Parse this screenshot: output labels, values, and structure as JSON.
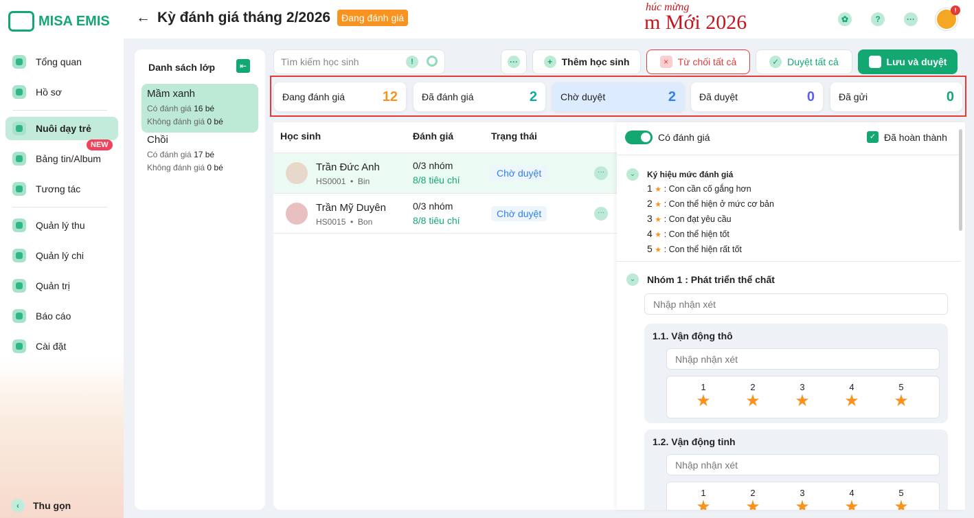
{
  "app": {
    "logo": "MISA EMIS"
  },
  "sidebar": {
    "items": [
      {
        "label": "Tổng quan"
      },
      {
        "label": "Hồ sơ"
      },
      {
        "label": "Nuôi dạy trẻ"
      },
      {
        "label": "Bảng tin/Album",
        "badge": "NEW"
      },
      {
        "label": "Tương tác"
      },
      {
        "label": "Quản lý thu"
      },
      {
        "label": "Quản lý chi"
      },
      {
        "label": "Quản trị"
      },
      {
        "label": "Báo cáo"
      },
      {
        "label": "Cài đặt"
      }
    ],
    "collapse": "Thu gọn",
    "active": "Nuôi dạy trẻ"
  },
  "header": {
    "title": "Kỳ đánh giá tháng 2/2026",
    "status": "Đang đánh giá",
    "banner_small": "húc mừng",
    "banner": "m Mới 2026",
    "notif": "!"
  },
  "classes": {
    "title": "Danh sách lớp",
    "items": [
      {
        "name": "Mầm xanh",
        "with_label": "Có đánh giá",
        "with": "16 bé",
        "without_label": "Không đánh giá",
        "without": "0 bé"
      },
      {
        "name": "Chồi",
        "with_label": "Có đánh giá",
        "with": "17 bé",
        "without_label": "Không đánh giá",
        "without": "0 bé"
      }
    ]
  },
  "toolbar": {
    "search_placeholder": "Tìm kiếm học sinh",
    "add": "Thêm học sinh",
    "reject_all": "Từ chối tất cả",
    "approve_all": "Duyệt tất cả",
    "save_approve": "Lưu và duyệt"
  },
  "stats": [
    {
      "label": "Đang đánh giá",
      "value": "12",
      "color": "#f7931e"
    },
    {
      "label": "Đã đánh giá",
      "value": "2",
      "color": "#13a8a0"
    },
    {
      "label": "Chờ duyệt",
      "value": "2",
      "color": "#2f80ed"
    },
    {
      "label": "Đã duyệt",
      "value": "0",
      "color": "#5b5ff0"
    },
    {
      "label": "Đã gửi",
      "value": "0",
      "color": "#13a772"
    }
  ],
  "table": {
    "headers": [
      "Học sinh",
      "Đánh giá",
      "Trạng thái"
    ],
    "rows": [
      {
        "name": "Trần Đức Anh",
        "code": "HS0001",
        "nick": "Bin",
        "groups": "0/3 nhóm",
        "criteria": "8/8 tiêu chí",
        "status": "Chờ duyệt"
      },
      {
        "name": "Trần Mỹ Duyên",
        "code": "HS0015",
        "nick": "Bon",
        "groups": "0/3 nhóm",
        "criteria": "8/8 tiêu chí",
        "status": "Chờ duyệt"
      }
    ]
  },
  "detail": {
    "toggle_label": "Có đánh giá",
    "toggle_on": true,
    "completed_label": "Đã hoàn thành",
    "completed": true,
    "legend_title": "Ký hiệu mức đánh giá",
    "legend": [
      {
        "n": "1",
        "text": ": Con cần cố gắng hơn"
      },
      {
        "n": "2",
        "text": ": Con thể hiện ở mức cơ bản"
      },
      {
        "n": "3",
        "text": ": Con đạt yêu cầu"
      },
      {
        "n": "4",
        "text": ": Con thể hiện tốt"
      },
      {
        "n": "5",
        "text": ": Con thể hiện rất tốt"
      }
    ],
    "group_title": "Nhóm 1 : Phát triển thể chất",
    "comment_placeholder": "Nhập nhận xét",
    "criteria": [
      {
        "title": "1.1. Vận động thô",
        "levels": [
          "1",
          "2",
          "3",
          "4",
          "5"
        ]
      },
      {
        "title": "1.2. Vận động tinh",
        "levels": [
          "1",
          "2",
          "3",
          "4",
          "5"
        ]
      }
    ]
  }
}
